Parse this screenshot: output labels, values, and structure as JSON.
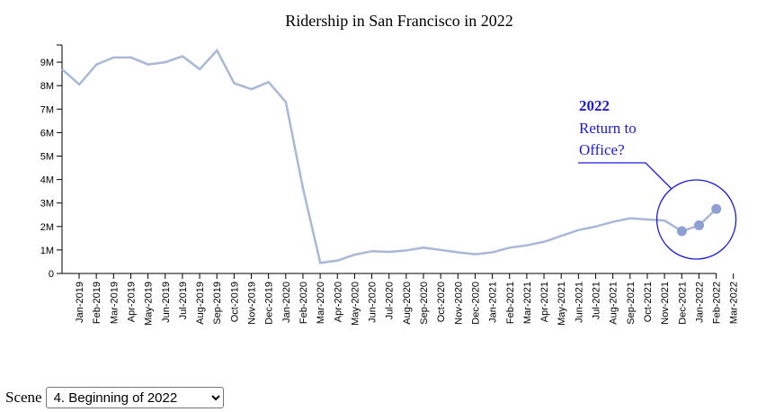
{
  "chart_data": {
    "type": "line",
    "title": "Ridership in San Francisco in 2022",
    "xlabel": "",
    "ylabel": "",
    "ylim": [
      0,
      9500000
    ],
    "y_ticks": [
      0,
      1000000,
      2000000,
      3000000,
      4000000,
      5000000,
      6000000,
      7000000,
      8000000,
      9000000
    ],
    "y_tick_labels": [
      "0",
      "1M",
      "2M",
      "3M",
      "4M",
      "5M",
      "6M",
      "7M",
      "8M",
      "9M"
    ],
    "x": [
      "Jan-2019",
      "Feb-2019",
      "Mar-2019",
      "Apr-2019",
      "May-2019",
      "Jun-2019",
      "Jul-2019",
      "Aug-2019",
      "Sep-2019",
      "Oct-2019",
      "Nov-2019",
      "Dec-2019",
      "Jan-2020",
      "Feb-2020",
      "Mar-2020",
      "Apr-2020",
      "May-2020",
      "Jun-2020",
      "Jul-2020",
      "Aug-2020",
      "Sep-2020",
      "Oct-2020",
      "Nov-2020",
      "Dec-2020",
      "Jan-2021",
      "Feb-2021",
      "Mar-2021",
      "Apr-2021",
      "May-2021",
      "Jun-2021",
      "Jul-2021",
      "Aug-2021",
      "Sep-2021",
      "Oct-2021",
      "Nov-2021",
      "Dec-2021",
      "Jan-2022",
      "Feb-2022",
      "Mar-2022"
    ],
    "values": [
      8700000,
      8050000,
      8900000,
      9200000,
      9200000,
      8900000,
      9000000,
      9250000,
      8700000,
      9500000,
      8100000,
      7850000,
      8150000,
      7300000,
      3600000,
      450000,
      550000,
      800000,
      950000,
      920000,
      980000,
      1100000,
      1000000,
      900000,
      820000,
      900000,
      1100000,
      1200000,
      1350000,
      1600000,
      1850000,
      2000000,
      2200000,
      2350000,
      2300000,
      2250000,
      1800000,
      2050000,
      2750000
    ],
    "highlight_points": [
      "Dec-2021",
      "Jan-2022",
      "Feb-2022",
      "Mar-2022"
    ],
    "annotation": {
      "title": "2022",
      "lines": [
        "Return to",
        "Office?"
      ]
    },
    "colors": {
      "line": "#a9b8d6",
      "highlight": "#8ca0d2",
      "annotation": "#1a1adb"
    }
  },
  "controls": {
    "scene_label": "Scene",
    "scene_selected": "4. Beginning of 2022"
  }
}
